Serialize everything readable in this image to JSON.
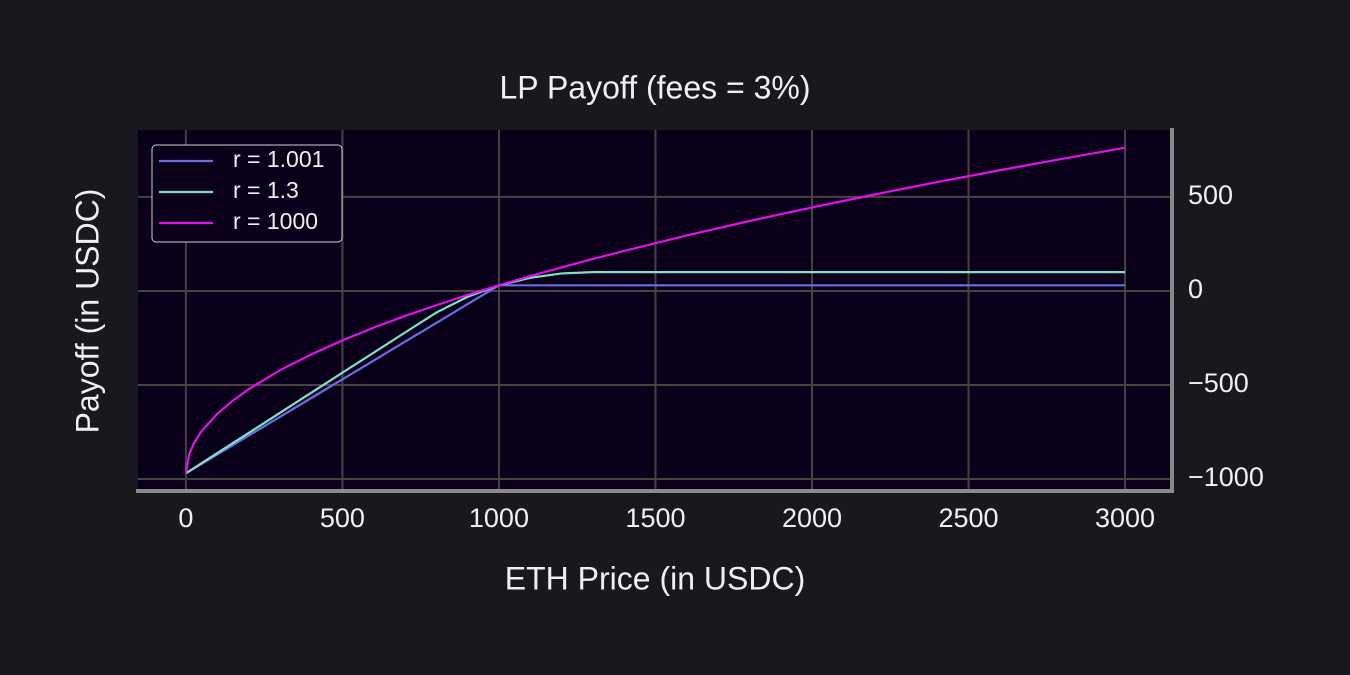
{
  "chart_data": {
    "type": "line",
    "title": "LP Payoff (fees = 3%)",
    "x_label": "ETH Price (in USDC)",
    "y_label": "Payoff (in USDC)",
    "x": [
      0,
      10,
      25,
      50,
      100,
      150,
      200,
      300,
      400,
      500,
      600,
      700,
      800,
      900,
      1000,
      1100,
      1200,
      1300,
      1400,
      1600,
      1800,
      2000,
      2200,
      2400,
      2600,
      2800,
      3000
    ],
    "series": [
      {
        "name": "r = 1.001",
        "color": "#6b6ce6",
        "values": [
          -970,
          -960,
          -945,
          -920,
          -870,
          -820,
          -770,
          -670,
          -570,
          -470,
          -370,
          -270,
          -170,
          -70,
          30,
          30,
          30,
          30,
          30,
          30,
          30,
          30,
          30,
          30,
          30,
          30,
          30
        ]
      },
      {
        "name": "r = 1.3",
        "color": "#7fe3c4",
        "values": [
          -970,
          -959,
          -943,
          -916,
          -863,
          -809,
          -756,
          -649,
          -542,
          -435,
          -328,
          -221,
          -115,
          -31,
          30,
          70,
          93,
          100,
          100,
          100,
          100,
          100,
          100,
          100,
          100,
          100,
          100
        ]
      },
      {
        "name": "r = 1000",
        "color": "#e012ea",
        "values": [
          -970,
          -870,
          -812,
          -746,
          -654,
          -583,
          -523,
          -422,
          -338,
          -263,
          -195,
          -133,
          -76,
          -21,
          30,
          79,
          125,
          170,
          213,
          295,
          372,
          444,
          513,
          579,
          642,
          703,
          762
        ]
      }
    ],
    "xlim": [
      -153,
      3150
    ],
    "ylim": [
      -1064,
      856
    ],
    "xticks": [
      0,
      500,
      1000,
      1500,
      2000,
      2500,
      3000
    ],
    "yticks": [
      {
        "value": -1000,
        "label": "−1000"
      },
      {
        "value": -500,
        "label": "−500"
      },
      0,
      500
    ],
    "y_axis_side": "right",
    "grid": true,
    "legend": "upper left"
  }
}
